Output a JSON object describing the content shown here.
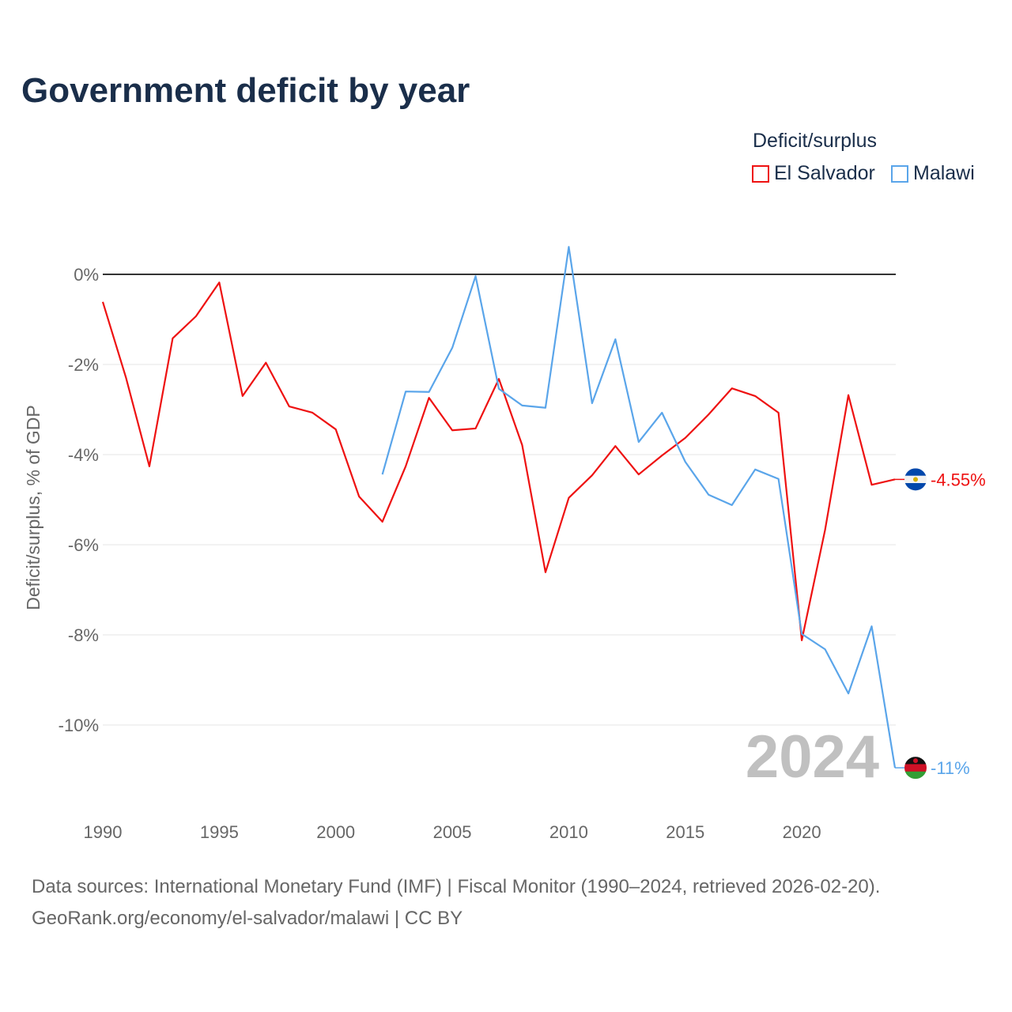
{
  "title": "Government deficit by year",
  "legend": {
    "title": "Deficit/surplus",
    "items": [
      {
        "label": "El Salvador",
        "color": "#ee1111"
      },
      {
        "label": "Malawi",
        "color": "#5aa5ea"
      }
    ]
  },
  "year_watermark": "2024",
  "footer": {
    "line1": "Data sources: International Monetary Fund (IMF) | Fiscal Monitor (1990–2024, retrieved 2026-02-20).",
    "line2": "GeoRank.org/economy/el-salvador/malawi | CC BY"
  },
  "chart_data": {
    "type": "line",
    "title": "Government deficit by year",
    "xlabel": "",
    "ylabel": "Deficit/surplus, % of GDP",
    "xlim": [
      1990,
      2024
    ],
    "ylim": [
      -11.5,
      1
    ],
    "x_ticks": [
      1990,
      1995,
      2000,
      2005,
      2010,
      2015,
      2020
    ],
    "x_tick_labels": [
      "1990",
      "1995",
      "2000",
      "2005",
      "2010",
      "2015",
      "2020"
    ],
    "y_ticks": [
      0,
      -2,
      -4,
      -6,
      -8,
      -10
    ],
    "y_tick_labels": [
      "0%",
      "-2%",
      "-4%",
      "-6%",
      "-8%",
      "-10%"
    ],
    "grid": true,
    "legend_position": "top-right",
    "series": [
      {
        "name": "El Salvador",
        "color": "#ee1111",
        "end_label": "-4.55%",
        "x": [
          1990,
          1991,
          1992,
          1993,
          1994,
          1995,
          1996,
          1997,
          1998,
          1999,
          2000,
          2001,
          2002,
          2003,
          2004,
          2005,
          2006,
          2007,
          2008,
          2009,
          2010,
          2011,
          2012,
          2013,
          2014,
          2015,
          2016,
          2017,
          2018,
          2019,
          2020,
          2021,
          2022,
          2023,
          2024
        ],
        "values": [
          -0.61,
          -2.3,
          -4.26,
          -1.42,
          -0.93,
          -0.18,
          -2.7,
          -1.96,
          -2.93,
          -3.07,
          -3.44,
          -4.93,
          -5.49,
          -4.26,
          -2.74,
          -3.46,
          -3.42,
          -2.32,
          -3.79,
          -6.61,
          -4.96,
          -4.46,
          -3.81,
          -4.44,
          -4.02,
          -3.63,
          -3.11,
          -2.53,
          -2.7,
          -3.07,
          -8.12,
          -5.67,
          -2.68,
          -4.67,
          -4.55
        ]
      },
      {
        "name": "Malawi",
        "color": "#5aa5ea",
        "end_label": "-11%",
        "x": [
          2002,
          2003,
          2004,
          2005,
          2006,
          2007,
          2008,
          2009,
          2010,
          2011,
          2012,
          2013,
          2014,
          2015,
          2016,
          2017,
          2018,
          2019,
          2020,
          2021,
          2022,
          2023,
          2024
        ],
        "values": [
          -4.44,
          -2.6,
          -2.61,
          -1.63,
          -0.04,
          -2.54,
          -2.91,
          -2.96,
          0.61,
          -2.86,
          -1.44,
          -3.72,
          -3.07,
          -4.16,
          -4.89,
          -5.12,
          -4.33,
          -4.54,
          -7.98,
          -8.32,
          -9.3,
          -7.81,
          -10.95
        ]
      }
    ]
  }
}
